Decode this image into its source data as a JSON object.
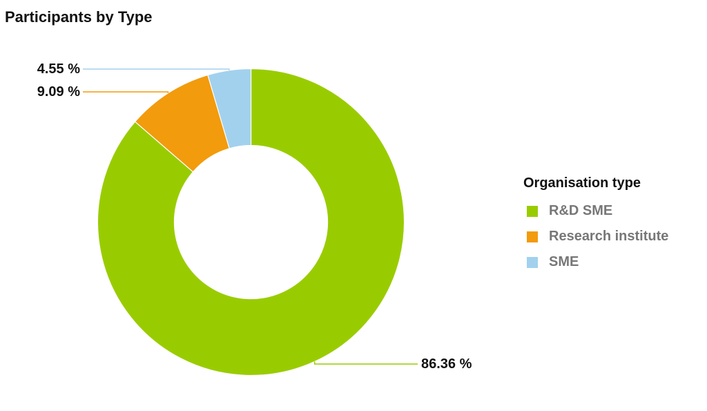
{
  "chart_data": {
    "type": "pie",
    "variant": "donut",
    "title": "Participants by Type",
    "legend_title": "Organisation type",
    "legend_position": "right",
    "slices": [
      {
        "label": "R&D SME",
        "value": 86.36,
        "value_label": "86.36 %",
        "color": "#99cc00"
      },
      {
        "label": "Research institute",
        "value": 9.09,
        "value_label": "9.09 %",
        "color": "#f29b0c"
      },
      {
        "label": "SME",
        "value": 4.55,
        "value_label": "4.55 %",
        "color": "#a2d1ee"
      }
    ]
  }
}
